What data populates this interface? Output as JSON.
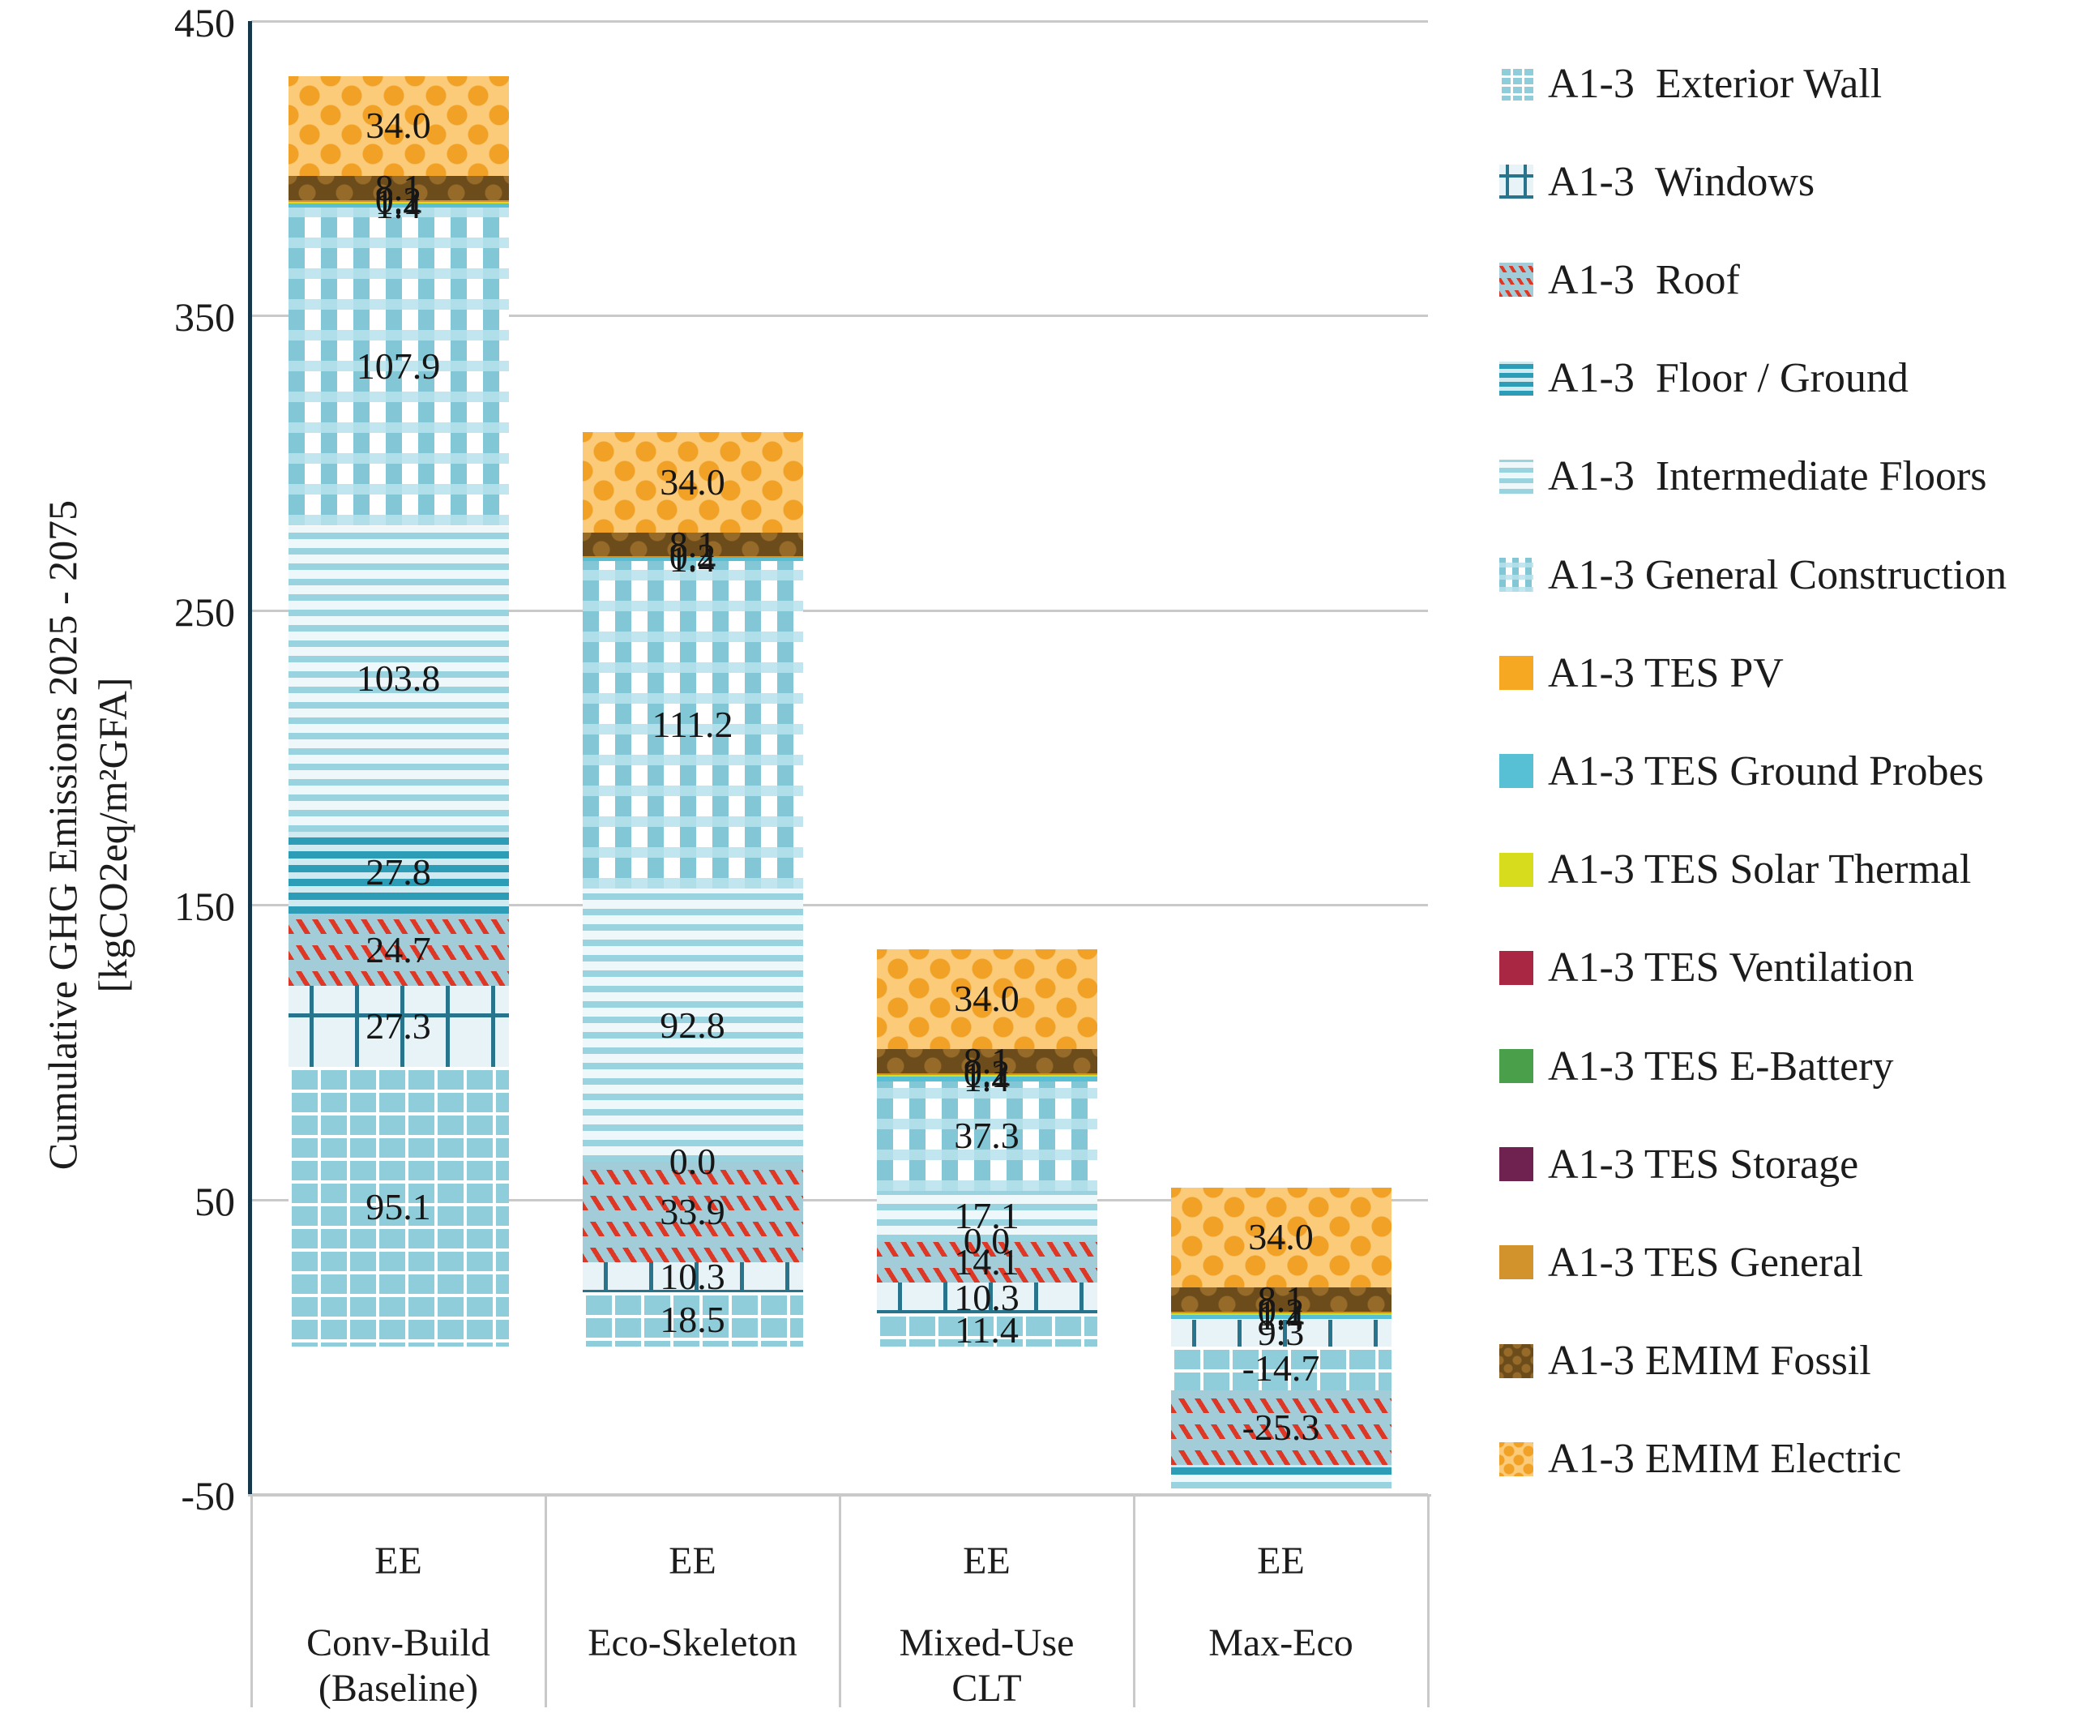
{
  "y_axis": {
    "title_line1": "Cumulative GHG Emissions 2025 - 2075",
    "title_line2": "[kgCO2eq/m²GFA]",
    "tick_labels": [
      "450",
      "350",
      "250",
      "150",
      "50",
      "-50"
    ],
    "tick_values": [
      450,
      350,
      250,
      150,
      50,
      -50
    ],
    "max": 450,
    "min": -50
  },
  "categories": [
    {
      "line1": "EE",
      "line2": "Conv-Build",
      "line3": "(Baseline)"
    },
    {
      "line1": "EE",
      "line2": "Eco-Skeleton",
      "line3": ""
    },
    {
      "line1": "EE",
      "line2": "Mixed-Use",
      "line3": "CLT"
    },
    {
      "line1": "EE",
      "line2": "Max-Eco",
      "line3": ""
    }
  ],
  "legend": {
    "items": [
      {
        "label": "A1-3  Exterior Wall",
        "pattern": "extwall"
      },
      {
        "label": "A1-3  Windows",
        "pattern": "windows"
      },
      {
        "label": "A1-3  Roof",
        "pattern": "roof"
      },
      {
        "label": "A1-3  Floor / Ground",
        "pattern": "floor"
      },
      {
        "label": "A1-3  Intermediate Floors",
        "pattern": "inter"
      },
      {
        "label": "A1-3 General Construction",
        "pattern": "general"
      },
      {
        "label": "A1-3 TES PV",
        "pattern": "pv"
      },
      {
        "label": "A1-3 TES Ground Probes",
        "pattern": "probes"
      },
      {
        "label": "A1-3 TES Solar Thermal",
        "pattern": "solar"
      },
      {
        "label": "A1-3 TES Ventilation",
        "pattern": "vent"
      },
      {
        "label": "A1-3 TES E-Battery",
        "pattern": "battery"
      },
      {
        "label": "A1-3 TES Storage",
        "pattern": "storage"
      },
      {
        "label": "A1-3 TES General",
        "pattern": "tesgen"
      },
      {
        "label": "A1-3 EMIM Fossil",
        "pattern": "fossil"
      },
      {
        "label": "A1-3 EMIM Electric",
        "pattern": "electric"
      }
    ]
  },
  "chart_data": {
    "type": "bar",
    "stacked": true,
    "categories": [
      "EE Conv-Build (Baseline)",
      "EE Eco-Skeleton",
      "EE Mixed-Use CLT",
      "EE Max-Eco"
    ],
    "ylabel": "Cumulative GHG Emissions 2025 - 2075 [kgCO2eq/m²GFA]",
    "ylim": [
      -50,
      450
    ],
    "grid": true,
    "legend_position": "right",
    "series": [
      {
        "name": "A1-3 Exterior Wall",
        "pattern": "extwall",
        "values": [
          95.1,
          18.5,
          11.4,
          -14.7
        ],
        "labels": [
          "95.1",
          "18.5",
          "11.4",
          "-14.7"
        ]
      },
      {
        "name": "A1-3 Windows",
        "pattern": "windows",
        "values": [
          27.3,
          10.3,
          10.3,
          9.3
        ],
        "labels": [
          "27.3",
          "10.3",
          "10.3",
          "9.3"
        ]
      },
      {
        "name": "A1-3 Roof",
        "pattern": "roof",
        "values": [
          24.7,
          33.9,
          14.1,
          -25.3
        ],
        "labels": [
          "24.7",
          "33.9",
          "14.1",
          "-25.3"
        ]
      },
      {
        "name": "A1-3 Floor / Ground",
        "pattern": "floor",
        "values": [
          27.8,
          0.0,
          0.0,
          -3.5
        ],
        "labels": [
          "27.8",
          "0.0",
          "0.0",
          null
        ]
      },
      {
        "name": "A1-3 Intermediate Floors",
        "pattern": "inter",
        "values": [
          103.8,
          92.8,
          17.1,
          -4.5
        ],
        "labels": [
          "103.8",
          "92.8",
          "17.1",
          null
        ]
      },
      {
        "name": "A1-3 General Construction",
        "pattern": "general",
        "values": [
          107.9,
          111.2,
          37.3,
          0.0
        ],
        "labels": [
          "107.9",
          "111.2",
          "37.3",
          null
        ]
      },
      {
        "name": "A1-3 TES PV",
        "pattern": "pv",
        "values": [
          0.0,
          0.0,
          0.0,
          0.0
        ],
        "labels": [
          null,
          null,
          null,
          null
        ]
      },
      {
        "name": "A1-3 TES Ground Probes",
        "pattern": "probes",
        "values": [
          1.4,
          1.4,
          1.4,
          1.4
        ],
        "labels": [
          "1.4",
          "1.4",
          "1.4",
          "1.4"
        ]
      },
      {
        "name": "A1-3 TES Solar Thermal",
        "pattern": "solar",
        "values": [
          1.1,
          0.0,
          1.1,
          1.1
        ],
        "labels": [
          "1.1",
          null,
          "1.1",
          "1.1"
        ]
      },
      {
        "name": "A1-3 TES Ventilation",
        "pattern": "vent",
        "values": [
          0.0,
          0.0,
          0.0,
          0.0
        ],
        "labels": [
          null,
          null,
          null,
          null
        ]
      },
      {
        "name": "A1-3 TES E-Battery",
        "pattern": "battery",
        "values": [
          0.0,
          0.0,
          0.0,
          0.0
        ],
        "labels": [
          null,
          null,
          null,
          null
        ]
      },
      {
        "name": "A1-3 TES Storage",
        "pattern": "storage",
        "values": [
          0.0,
          0.0,
          0.0,
          0.0
        ],
        "labels": [
          null,
          null,
          null,
          null
        ]
      },
      {
        "name": "A1-3 TES General",
        "pattern": "tesgen",
        "values": [
          0.2,
          0.2,
          0.2,
          0.2
        ],
        "labels": [
          "0.2",
          "0.2",
          "0.2",
          "0.2"
        ]
      },
      {
        "name": "A1-3 EMIM Fossil",
        "pattern": "fossil",
        "values": [
          8.1,
          8.1,
          8.1,
          8.1
        ],
        "labels": [
          "8.1",
          "8.1",
          "8.1",
          "8.1"
        ]
      },
      {
        "name": "A1-3 EMIM Electric",
        "pattern": "electric",
        "values": [
          34.0,
          34.0,
          34.0,
          34.0
        ],
        "labels": [
          "34.0",
          "34.0",
          "34.0",
          "34.0"
        ]
      }
    ]
  }
}
